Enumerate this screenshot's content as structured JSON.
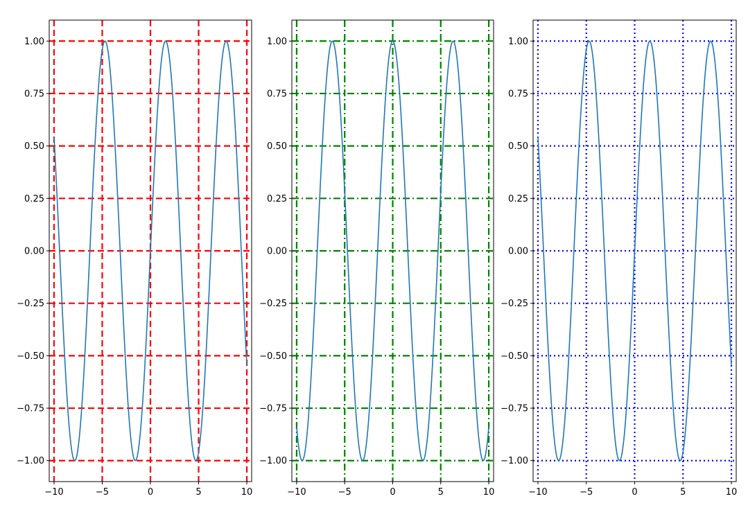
{
  "chart_data": [
    {
      "type": "line",
      "title": "",
      "xlabel": "",
      "ylabel": "",
      "xlim": [
        -10.5,
        10.5
      ],
      "ylim": [
        -1.1,
        1.1
      ],
      "xticks": [
        -10,
        -5,
        0,
        5,
        10
      ],
      "xtick_labels": [
        "−10",
        "−5",
        "0",
        "5",
        "10"
      ],
      "yticks": [
        1.0,
        0.75,
        0.5,
        0.25,
        0.0,
        -0.25,
        -0.5,
        -0.75,
        -1.0
      ],
      "ytick_labels": [
        "1.00",
        "0.75",
        "0.50",
        "0.25",
        "0.00",
        "−0.25",
        "−0.50",
        "−0.75",
        "−1.00"
      ],
      "grid": {
        "on": true,
        "style": "dashed",
        "color": "#ff0000"
      },
      "series": [
        {
          "function": "sin(x)",
          "x_range": [
            -10,
            10
          ],
          "color": "#1f77b4"
        }
      ]
    },
    {
      "type": "line",
      "title": "",
      "xlabel": "",
      "ylabel": "",
      "xlim": [
        -10.5,
        10.5
      ],
      "ylim": [
        -1.1,
        1.1
      ],
      "xticks": [
        -10,
        -5,
        0,
        5,
        10
      ],
      "xtick_labels": [
        "−10",
        "−5",
        "0",
        "5",
        "10"
      ],
      "yticks": [
        1.0,
        0.75,
        0.5,
        0.25,
        0.0,
        -0.25,
        -0.5,
        -0.75,
        -1.0
      ],
      "ytick_labels": [
        "1.00",
        "0.75",
        "0.50",
        "0.25",
        "0.00",
        "−0.25",
        "−0.50",
        "−0.75",
        "−1.00"
      ],
      "grid": {
        "on": true,
        "style": "dashdot",
        "color": "#008000"
      },
      "series": [
        {
          "function": "cos(x)",
          "x_range": [
            -10,
            10
          ],
          "color": "#1f77b4"
        }
      ]
    },
    {
      "type": "line",
      "title": "",
      "xlabel": "",
      "ylabel": "",
      "xlim": [
        -10.5,
        10.5
      ],
      "ylim": [
        -1.1,
        1.1
      ],
      "xticks": [
        -10,
        -5,
        0,
        5,
        10
      ],
      "xtick_labels": [
        "−10",
        "−5",
        "0",
        "5",
        "10"
      ],
      "yticks": [
        1.0,
        0.75,
        0.5,
        0.25,
        0.0,
        -0.25,
        -0.5,
        -0.75,
        -1.0
      ],
      "ytick_labels": [
        "1.00",
        "0.75",
        "0.50",
        "0.25",
        "0.00",
        "−0.25",
        "−0.50",
        "−0.75",
        "−1.00"
      ],
      "grid": {
        "on": true,
        "style": "dotted",
        "color": "#0000ff"
      },
      "series": [
        {
          "function": "sin(x)",
          "x_range": [
            -10,
            10
          ],
          "color": "#1f77b4"
        }
      ]
    }
  ]
}
